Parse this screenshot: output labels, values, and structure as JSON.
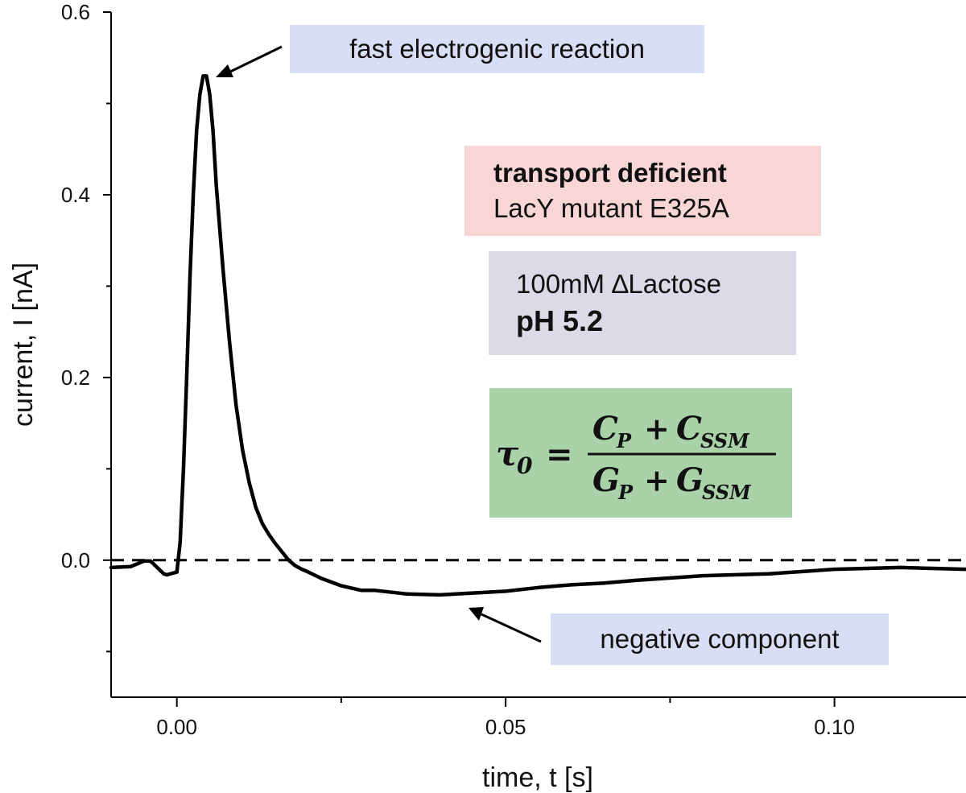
{
  "chart_data": {
    "type": "line",
    "xlabel": "time, t [s]",
    "ylabel": "current, I [nA]",
    "xlim": [
      -0.01,
      0.12
    ],
    "ylim": [
      -0.15,
      0.6
    ],
    "x_ticks": [
      0.0,
      0.05,
      0.1
    ],
    "x_tick_labels": [
      "0.00",
      "0.05",
      "0.10"
    ],
    "x_minor_ticks": [
      -0.025,
      0.025,
      0.075,
      0.125
    ],
    "y_ticks": [
      0.0,
      0.2,
      0.4,
      0.6
    ],
    "y_tick_labels": [
      "0.0",
      "0.2",
      "0.4",
      "0.6"
    ],
    "y_minor_ticks": [
      -0.1,
      0.1,
      0.3,
      0.5
    ],
    "zero_line": 0.0,
    "series": [
      {
        "name": "current trace",
        "x": [
          -0.01,
          -0.007,
          -0.005,
          -0.004,
          -0.002,
          -0.0015,
          -0.001,
          0.0,
          0.0005,
          0.001,
          0.0015,
          0.002,
          0.0025,
          0.003,
          0.0035,
          0.004,
          0.0045,
          0.005,
          0.0055,
          0.006,
          0.007,
          0.008,
          0.009,
          0.01,
          0.011,
          0.012,
          0.013,
          0.014,
          0.015,
          0.016,
          0.017,
          0.018,
          0.019,
          0.02,
          0.022,
          0.025,
          0.028,
          0.03,
          0.035,
          0.04,
          0.045,
          0.05,
          0.055,
          0.06,
          0.065,
          0.07,
          0.08,
          0.09,
          0.1,
          0.11,
          0.12
        ],
        "values": [
          -0.008,
          -0.007,
          -0.001,
          -0.001,
          -0.015,
          -0.016,
          -0.015,
          -0.013,
          0.02,
          0.1,
          0.2,
          0.31,
          0.4,
          0.47,
          0.51,
          0.53,
          0.53,
          0.51,
          0.47,
          0.41,
          0.32,
          0.24,
          0.17,
          0.12,
          0.085,
          0.058,
          0.04,
          0.028,
          0.018,
          0.009,
          0.0,
          -0.006,
          -0.01,
          -0.013,
          -0.02,
          -0.028,
          -0.033,
          -0.033,
          -0.037,
          -0.038,
          -0.036,
          -0.034,
          -0.03,
          -0.027,
          -0.025,
          -0.022,
          -0.017,
          -0.015,
          -0.01,
          -0.008,
          -0.01
        ]
      }
    ]
  },
  "annotations": {
    "fast_reaction": "fast electrogenic reaction",
    "negative_component": "negative component",
    "mutant_title": "transport deficient",
    "mutant_name": "LacY mutant E325A",
    "concentration": "100mM ∆Lactose",
    "ph": "pH 5.2",
    "formula": {
      "lhs": "τ",
      "lhs_sub": "0",
      "eq": "=",
      "num_a": "C",
      "num_a_sub": "P",
      "plus": "+",
      "num_b": "C",
      "num_b_sub": "SSM",
      "den_a": "G",
      "den_a_sub": "P",
      "den_b": "G",
      "den_b_sub": "SSM"
    }
  },
  "colors": {
    "trace": "#000000",
    "blue_box": "#d8def4",
    "pink_box": "#f8d6d6",
    "gray_box": "#dcdae6",
    "green_box": "#a9d2a9"
  }
}
